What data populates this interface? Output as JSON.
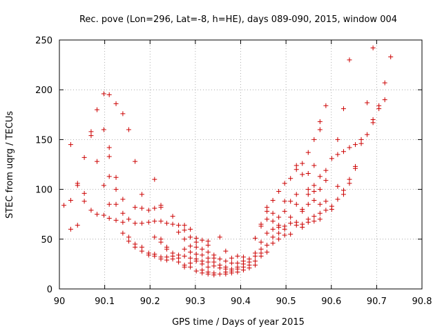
{
  "chart_data": {
    "type": "scatter",
    "title": "Rec. pove (Lon=296, Lat=-8, h=HE), days 089-090, 2015, window 004",
    "xlabel": "GPS time / Days of year 2015",
    "ylabel": "STEC from uqrg / TECUs",
    "xlim": [
      90,
      90.8
    ],
    "ylim": [
      0,
      250
    ],
    "xticks": [
      90,
      90.1,
      90.2,
      90.3,
      90.4,
      90.5,
      90.6,
      90.7,
      90.8
    ],
    "xtick_labels": [
      "90",
      "90.1",
      "90.2",
      "90.3",
      "90.4",
      "90.5",
      "90.6",
      "90.7",
      "90.8"
    ],
    "yticks": [
      0,
      50,
      100,
      150,
      200,
      250
    ],
    "ytick_labels": [
      "0",
      "50",
      "100",
      "150",
      "200",
      "250"
    ],
    "grid": true,
    "marker": "+",
    "color": "#cc0000",
    "series": [
      {
        "name": "STEC",
        "points": [
          [
            90.01,
            84
          ],
          [
            90.025,
            89
          ],
          [
            90.025,
            145
          ],
          [
            90.025,
            60
          ],
          [
            90.04,
            106
          ],
          [
            90.04,
            104
          ],
          [
            90.04,
            64
          ],
          [
            90.055,
            132
          ],
          [
            90.055,
            96
          ],
          [
            90.055,
            88
          ],
          [
            90.07,
            158
          ],
          [
            90.07,
            154
          ],
          [
            90.07,
            79
          ],
          [
            90.083,
            180
          ],
          [
            90.083,
            128
          ],
          [
            90.083,
            75
          ],
          [
            90.098,
            196
          ],
          [
            90.098,
            160
          ],
          [
            90.098,
            104
          ],
          [
            90.098,
            74
          ],
          [
            90.11,
            195
          ],
          [
            90.11,
            142
          ],
          [
            90.11,
            133
          ],
          [
            90.11,
            113
          ],
          [
            90.11,
            85
          ],
          [
            90.11,
            71
          ],
          [
            90.125,
            186
          ],
          [
            90.125,
            112
          ],
          [
            90.125,
            100
          ],
          [
            90.125,
            85
          ],
          [
            90.125,
            69
          ],
          [
            90.14,
            176
          ],
          [
            90.14,
            90
          ],
          [
            90.14,
            76
          ],
          [
            90.14,
            67
          ],
          [
            90.14,
            56
          ],
          [
            90.153,
            160
          ],
          [
            90.153,
            70
          ],
          [
            90.153,
            52
          ],
          [
            90.153,
            48
          ],
          [
            90.167,
            128
          ],
          [
            90.167,
            82
          ],
          [
            90.167,
            66
          ],
          [
            90.167,
            45
          ],
          [
            90.167,
            42
          ],
          [
            90.182,
            95
          ],
          [
            90.182,
            81
          ],
          [
            90.182,
            66
          ],
          [
            90.182,
            42
          ],
          [
            90.182,
            38
          ],
          [
            90.197,
            79
          ],
          [
            90.197,
            67
          ],
          [
            90.197,
            36
          ],
          [
            90.197,
            34
          ],
          [
            90.21,
            110
          ],
          [
            90.21,
            81
          ],
          [
            90.21,
            68
          ],
          [
            90.21,
            52
          ],
          [
            90.21,
            35
          ],
          [
            90.21,
            33
          ],
          [
            90.224,
            84
          ],
          [
            90.224,
            82
          ],
          [
            90.224,
            68
          ],
          [
            90.224,
            50
          ],
          [
            90.224,
            47
          ],
          [
            90.224,
            32
          ],
          [
            90.224,
            30
          ],
          [
            90.237,
            66
          ],
          [
            90.237,
            42
          ],
          [
            90.237,
            40
          ],
          [
            90.237,
            32
          ],
          [
            90.237,
            29
          ],
          [
            90.25,
            73
          ],
          [
            90.25,
            65
          ],
          [
            90.25,
            36
          ],
          [
            90.25,
            33
          ],
          [
            90.25,
            30
          ],
          [
            90.263,
            64
          ],
          [
            90.263,
            57
          ],
          [
            90.263,
            34
          ],
          [
            90.263,
            31
          ],
          [
            90.263,
            27
          ],
          [
            90.276,
            64
          ],
          [
            90.276,
            59
          ],
          [
            90.276,
            50
          ],
          [
            90.276,
            40
          ],
          [
            90.276,
            33
          ],
          [
            90.276,
            24
          ],
          [
            90.276,
            22
          ],
          [
            90.289,
            60
          ],
          [
            90.289,
            52
          ],
          [
            90.289,
            43
          ],
          [
            90.289,
            37
          ],
          [
            90.289,
            31
          ],
          [
            90.289,
            26
          ],
          [
            90.289,
            22
          ],
          [
            90.302,
            51
          ],
          [
            90.302,
            47
          ],
          [
            90.302,
            42
          ],
          [
            90.302,
            35
          ],
          [
            90.302,
            30
          ],
          [
            90.302,
            28
          ],
          [
            90.302,
            18
          ],
          [
            90.315,
            49
          ],
          [
            90.315,
            40
          ],
          [
            90.315,
            34
          ],
          [
            90.315,
            28
          ],
          [
            90.315,
            25
          ],
          [
            90.315,
            19
          ],
          [
            90.315,
            16
          ],
          [
            90.328,
            48
          ],
          [
            90.328,
            44
          ],
          [
            90.328,
            37
          ],
          [
            90.328,
            31
          ],
          [
            90.328,
            27
          ],
          [
            90.328,
            22
          ],
          [
            90.328,
            17
          ],
          [
            90.328,
            15
          ],
          [
            90.341,
            34
          ],
          [
            90.341,
            31
          ],
          [
            90.341,
            27
          ],
          [
            90.341,
            23
          ],
          [
            90.341,
            16
          ],
          [
            90.341,
            14
          ],
          [
            90.354,
            52
          ],
          [
            90.354,
            30
          ],
          [
            90.354,
            24
          ],
          [
            90.354,
            21
          ],
          [
            90.354,
            15
          ],
          [
            90.367,
            38
          ],
          [
            90.367,
            28
          ],
          [
            90.367,
            22
          ],
          [
            90.367,
            20
          ],
          [
            90.367,
            17
          ],
          [
            90.367,
            15
          ],
          [
            90.38,
            31
          ],
          [
            90.38,
            26
          ],
          [
            90.38,
            20
          ],
          [
            90.38,
            18
          ],
          [
            90.38,
            16
          ],
          [
            90.393,
            33
          ],
          [
            90.393,
            26
          ],
          [
            90.393,
            22
          ],
          [
            90.393,
            20
          ],
          [
            90.393,
            17
          ],
          [
            90.406,
            32
          ],
          [
            90.406,
            28
          ],
          [
            90.406,
            25
          ],
          [
            90.406,
            22
          ],
          [
            90.406,
            19
          ],
          [
            90.419,
            30
          ],
          [
            90.419,
            27
          ],
          [
            90.419,
            24
          ],
          [
            90.419,
            21
          ],
          [
            90.432,
            51
          ],
          [
            90.432,
            36
          ],
          [
            90.432,
            33
          ],
          [
            90.432,
            28
          ],
          [
            90.432,
            24
          ],
          [
            90.445,
            65
          ],
          [
            90.445,
            63
          ],
          [
            90.445,
            47
          ],
          [
            90.445,
            40
          ],
          [
            90.445,
            36
          ],
          [
            90.445,
            33
          ],
          [
            90.458,
            82
          ],
          [
            90.458,
            78
          ],
          [
            90.458,
            70
          ],
          [
            90.458,
            56
          ],
          [
            90.458,
            44
          ],
          [
            90.458,
            37
          ],
          [
            90.471,
            89
          ],
          [
            90.471,
            76
          ],
          [
            90.471,
            68
          ],
          [
            90.471,
            60
          ],
          [
            90.471,
            52
          ],
          [
            90.471,
            46
          ],
          [
            90.484,
            98
          ],
          [
            90.484,
            72
          ],
          [
            90.484,
            64
          ],
          [
            90.484,
            62
          ],
          [
            90.484,
            56
          ],
          [
            90.484,
            50
          ],
          [
            90.497,
            106
          ],
          [
            90.497,
            88
          ],
          [
            90.497,
            78
          ],
          [
            90.497,
            63
          ],
          [
            90.497,
            60
          ],
          [
            90.497,
            54
          ],
          [
            90.51,
            111
          ],
          [
            90.51,
            88
          ],
          [
            90.51,
            72
          ],
          [
            90.51,
            66
          ],
          [
            90.51,
            55
          ],
          [
            90.523,
            124
          ],
          [
            90.523,
            120
          ],
          [
            90.523,
            95
          ],
          [
            90.523,
            85
          ],
          [
            90.523,
            67
          ],
          [
            90.523,
            64
          ],
          [
            90.536,
            126
          ],
          [
            90.536,
            115
          ],
          [
            90.536,
            80
          ],
          [
            90.536,
            78
          ],
          [
            90.536,
            65
          ],
          [
            90.536,
            62
          ],
          [
            90.549,
            137
          ],
          [
            90.549,
            116
          ],
          [
            90.549,
            100
          ],
          [
            90.549,
            95
          ],
          [
            90.549,
            85
          ],
          [
            90.549,
            70
          ],
          [
            90.549,
            67
          ],
          [
            90.562,
            150
          ],
          [
            90.562,
            124
          ],
          [
            90.562,
            104
          ],
          [
            90.562,
            98
          ],
          [
            90.562,
            89
          ],
          [
            90.562,
            73
          ],
          [
            90.562,
            68
          ],
          [
            90.575,
            168
          ],
          [
            90.575,
            160
          ],
          [
            90.575,
            113
          ],
          [
            90.575,
            100
          ],
          [
            90.575,
            85
          ],
          [
            90.575,
            76
          ],
          [
            90.575,
            70
          ],
          [
            90.588,
            184
          ],
          [
            90.588,
            119
          ],
          [
            90.588,
            109
          ],
          [
            90.588,
            88
          ],
          [
            90.588,
            79
          ],
          [
            90.601,
            131
          ],
          [
            90.601,
            83
          ],
          [
            90.601,
            80
          ],
          [
            90.614,
            150
          ],
          [
            90.614,
            135
          ],
          [
            90.614,
            103
          ],
          [
            90.614,
            90
          ],
          [
            90.627,
            181
          ],
          [
            90.627,
            138
          ],
          [
            90.627,
            99
          ],
          [
            90.627,
            95
          ],
          [
            90.64,
            230
          ],
          [
            90.64,
            142
          ],
          [
            90.64,
            110
          ],
          [
            90.64,
            106
          ],
          [
            90.653,
            145
          ],
          [
            90.653,
            123
          ],
          [
            90.653,
            121
          ],
          [
            90.666,
            150
          ],
          [
            90.666,
            146
          ],
          [
            90.679,
            187
          ],
          [
            90.679,
            155
          ],
          [
            90.692,
            242
          ],
          [
            90.692,
            170
          ],
          [
            90.692,
            167
          ],
          [
            90.705,
            184
          ],
          [
            90.705,
            181
          ],
          [
            90.718,
            207
          ],
          [
            90.718,
            190
          ],
          [
            90.731,
            233
          ]
        ]
      }
    ]
  }
}
